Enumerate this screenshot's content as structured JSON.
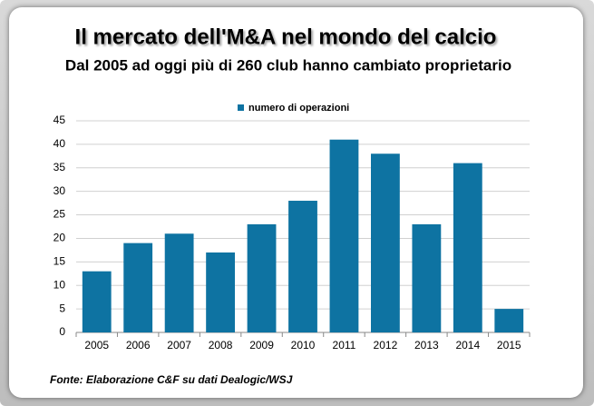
{
  "chart_data": {
    "type": "bar",
    "title": "Il mercato dell'M&A nel mondo del calcio",
    "subtitle": "Dal 2005 ad oggi più di 260 club hanno cambiato proprietario",
    "categories": [
      "2005",
      "2006",
      "2007",
      "2008",
      "2009",
      "2010",
      "2011",
      "2012",
      "2013",
      "2014",
      "2015"
    ],
    "series": [
      {
        "name": "numero di operazioni",
        "color": "#0e73a2",
        "values": [
          13,
          19,
          21,
          17,
          23,
          28,
          41,
          38,
          23,
          36,
          5
        ]
      }
    ],
    "ylim": [
      0,
      45
    ],
    "yticks": [
      0,
      5,
      10,
      15,
      20,
      25,
      30,
      35,
      40,
      45
    ],
    "grid": true,
    "legend": "top",
    "source": "Fonte: Elaborazione C&F su dati Dealogic/WSJ"
  }
}
